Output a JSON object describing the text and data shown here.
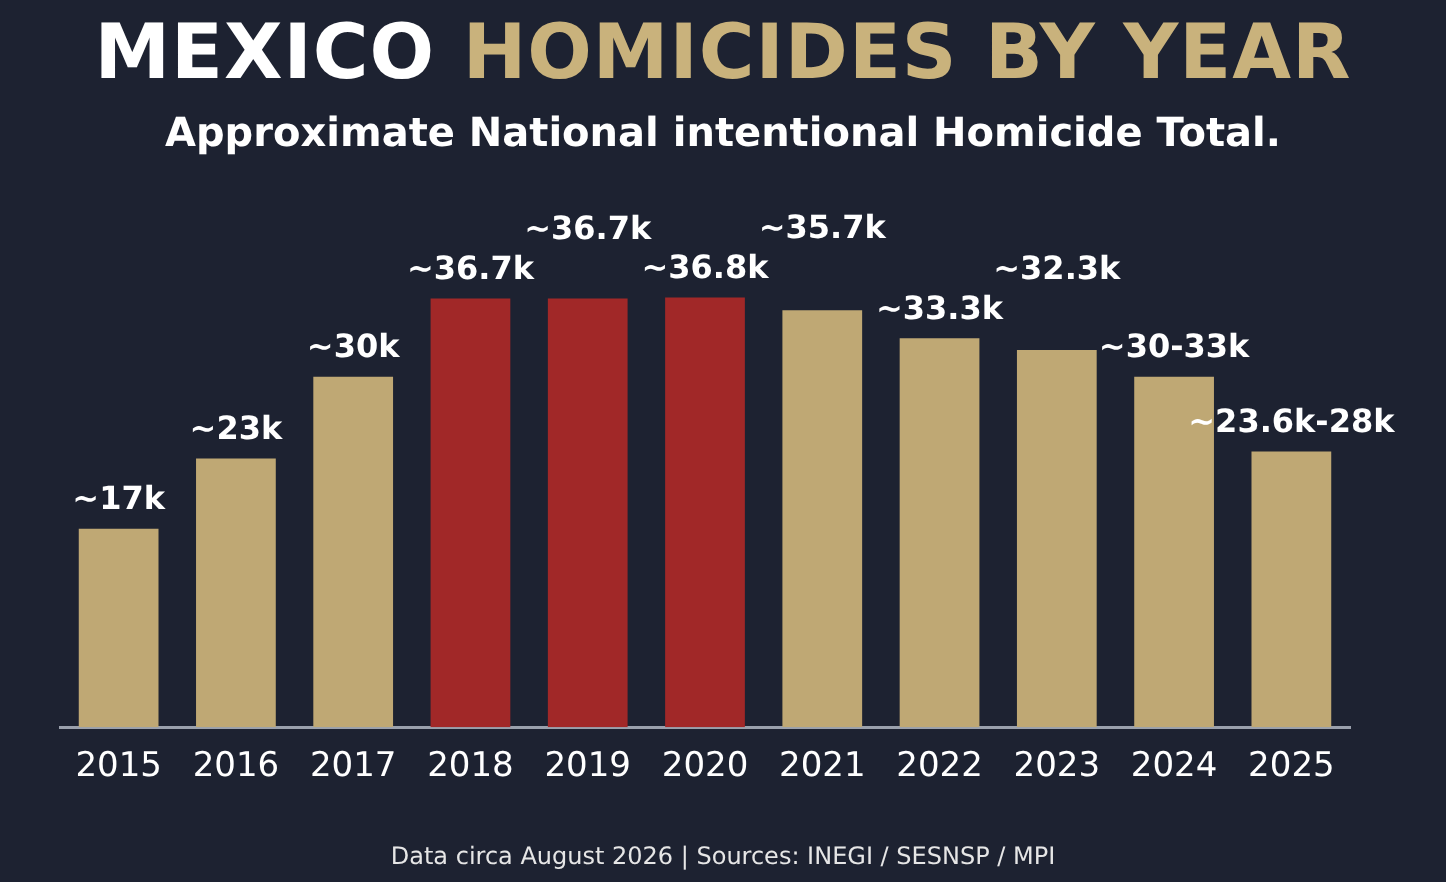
{
  "chart_data": {
    "type": "bar",
    "title": "MEXICO HOMICIDES BY YEAR",
    "subtitle": "Approximate National intentional Homicide Total.",
    "categories": [
      "2015",
      "2016",
      "2017",
      "2018",
      "2019",
      "2020",
      "2021",
      "2022",
      "2023",
      "2024",
      "2025"
    ],
    "tick_labels": "x",
    "values": [
      17,
      23,
      30,
      36.7,
      36.7,
      36.8,
      35.7,
      33.3,
      32.3,
      30,
      23.6
    ],
    "value_labels": [
      "~17k",
      "~23k",
      "~30k",
      "~36.7k",
      "~36.7k",
      "~36.8k",
      "~35.7k",
      "~33.3k",
      "~32.3k",
      "~30-33k",
      "~23.6k-28k"
    ],
    "colors": [
      "#bfa874",
      "#bfa874",
      "#bfa874",
      "#a12828",
      "#a12828",
      "#a12828",
      "#bfa874",
      "#bfa874",
      "#bfa874",
      "#bfa874",
      "#bfa874"
    ],
    "legend": false,
    "annotations": [
      "Data circa August 2026 | Sources: INEGI / SESNSP / MPI"
    ]
  }
}
